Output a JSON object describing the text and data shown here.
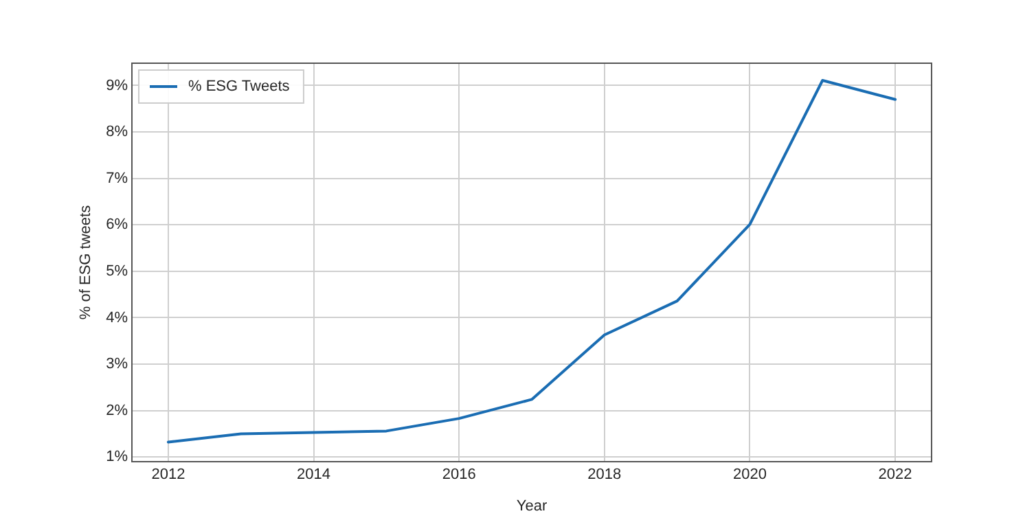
{
  "chart_data": {
    "type": "line",
    "xlabel": "Year",
    "ylabel": "% of ESG tweets",
    "x": [
      2012,
      2013,
      2014,
      2015,
      2016,
      2017,
      2018,
      2019,
      2020,
      2021,
      2022
    ],
    "series": [
      {
        "name": "% ESG Tweets",
        "color": "#1a6db3",
        "values": [
          1.32,
          1.5,
          1.53,
          1.56,
          1.83,
          2.24,
          3.63,
          4.36,
          6.01,
          9.11,
          8.7
        ]
      }
    ],
    "xlim": [
      2011.5,
      2022.5
    ],
    "xticks": [
      2012,
      2014,
      2016,
      2018,
      2020,
      2022
    ],
    "ylim": [
      0.9,
      9.48
    ],
    "yticks": [
      {
        "value": 1,
        "label": "1%"
      },
      {
        "value": 2,
        "label": "2%"
      },
      {
        "value": 3,
        "label": "3%"
      },
      {
        "value": 4,
        "label": "4%"
      },
      {
        "value": 5,
        "label": "5%"
      },
      {
        "value": 6,
        "label": "6%"
      },
      {
        "value": 7,
        "label": "7%"
      },
      {
        "value": 8,
        "label": "8%"
      },
      {
        "value": 9,
        "label": "9%"
      }
    ],
    "grid": true,
    "legend": "top left",
    "marker": "none",
    "line_style": "solid"
  }
}
